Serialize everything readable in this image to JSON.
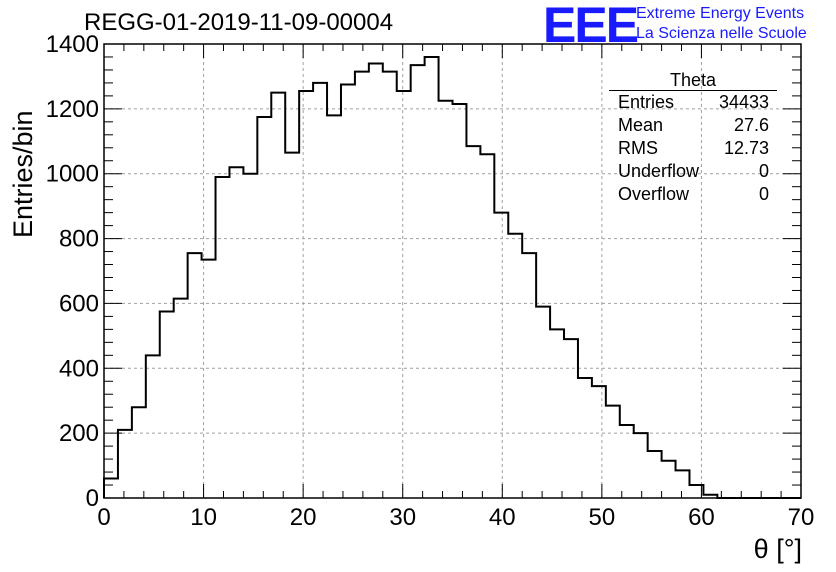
{
  "header": {
    "title": "REGG-01-2019-11-09-00004",
    "logo": "EEE",
    "logo_line1": "Extreme Energy Events",
    "logo_line2": "La Scienza nelle Scuole"
  },
  "stats": {
    "title": "Theta",
    "rows": [
      {
        "label": "Entries",
        "value": "34433"
      },
      {
        "label": "Mean",
        "value": "27.6"
      },
      {
        "label": "RMS",
        "value": "12.73"
      },
      {
        "label": "Underflow",
        "value": "0"
      },
      {
        "label": "Overflow",
        "value": "0"
      }
    ]
  },
  "chart_data": {
    "type": "histogram",
    "title": "REGG-01-2019-11-09-00004",
    "xlabel": "θ [°]",
    "ylabel": "Entries/bin",
    "xlim": [
      0,
      70
    ],
    "ylim": [
      0,
      1400
    ],
    "grid": true,
    "bin_width": 1.4,
    "bin_start": 0,
    "xticks": [
      0,
      10,
      20,
      30,
      40,
      50,
      60,
      70
    ],
    "yticks": [
      0,
      200,
      400,
      600,
      800,
      1000,
      1200,
      1400
    ],
    "values": [
      60,
      210,
      280,
      440,
      575,
      615,
      755,
      735,
      990,
      1020,
      1000,
      1175,
      1250,
      1065,
      1255,
      1280,
      1180,
      1275,
      1315,
      1340,
      1315,
      1255,
      1335,
      1360,
      1225,
      1215,
      1085,
      1060,
      880,
      815,
      755,
      590,
      520,
      490,
      370,
      345,
      285,
      225,
      200,
      145,
      115,
      85,
      40,
      10,
      0,
      0,
      0,
      0,
      0,
      0
    ]
  }
}
